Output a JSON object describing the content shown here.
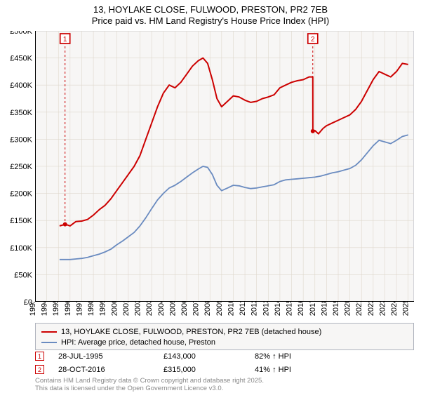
{
  "title_line1": "13, HOYLAKE CLOSE, FULWOOD, PRESTON, PR2 7EB",
  "title_line2": "Price paid vs. HM Land Registry's House Price Index (HPI)",
  "chart": {
    "type": "line",
    "background_color": "#f7f6f5",
    "border_color": "#b0b4be",
    "grid_color": "#ded7cc",
    "axis_color": "#000000",
    "minor_grid": true,
    "x_years": [
      1993,
      1994,
      1995,
      1996,
      1997,
      1998,
      1999,
      2000,
      2001,
      2002,
      2003,
      2004,
      2005,
      2006,
      2007,
      2008,
      2009,
      2010,
      2011,
      2012,
      2013,
      2014,
      2015,
      2016,
      2017,
      2018,
      2019,
      2020,
      2021,
      2022,
      2023,
      2024,
      2025
    ],
    "y_ticks": [
      0,
      50,
      100,
      150,
      200,
      250,
      300,
      350,
      400,
      450,
      500
    ],
    "y_tick_labels": [
      "£0",
      "£50K",
      "£100K",
      "£150K",
      "£200K",
      "£250K",
      "£300K",
      "£350K",
      "£400K",
      "£450K",
      "£500K"
    ],
    "ylim": [
      0,
      500
    ],
    "xlim": [
      1993,
      2025.5
    ],
    "label_fontsize": 11,
    "series": [
      {
        "name": "price_paid",
        "color": "#cc0000",
        "line_width": 2,
        "data": [
          [
            1995.1,
            140
          ],
          [
            1995.6,
            143
          ],
          [
            1996.0,
            140
          ],
          [
            1996.5,
            148
          ],
          [
            1997.0,
            149
          ],
          [
            1997.5,
            152
          ],
          [
            1998.0,
            160
          ],
          [
            1998.5,
            170
          ],
          [
            1999.0,
            178
          ],
          [
            1999.5,
            190
          ],
          [
            2000.0,
            205
          ],
          [
            2000.5,
            220
          ],
          [
            2001.0,
            235
          ],
          [
            2001.5,
            250
          ],
          [
            2002.0,
            270
          ],
          [
            2002.5,
            300
          ],
          [
            2003.0,
            330
          ],
          [
            2003.5,
            360
          ],
          [
            2004.0,
            385
          ],
          [
            2004.5,
            400
          ],
          [
            2005.0,
            395
          ],
          [
            2005.5,
            405
          ],
          [
            2006.0,
            420
          ],
          [
            2006.5,
            435
          ],
          [
            2007.0,
            445
          ],
          [
            2007.4,
            450
          ],
          [
            2007.8,
            440
          ],
          [
            2008.2,
            410
          ],
          [
            2008.6,
            375
          ],
          [
            2009.0,
            360
          ],
          [
            2009.5,
            370
          ],
          [
            2010.0,
            380
          ],
          [
            2010.5,
            378
          ],
          [
            2011.0,
            372
          ],
          [
            2011.5,
            368
          ],
          [
            2012.0,
            370
          ],
          [
            2012.5,
            375
          ],
          [
            2013.0,
            378
          ],
          [
            2013.5,
            382
          ],
          [
            2014.0,
            395
          ],
          [
            2014.5,
            400
          ],
          [
            2015.0,
            405
          ],
          [
            2015.5,
            408
          ],
          [
            2016.0,
            410
          ],
          [
            2016.5,
            415
          ],
          [
            2016.82,
            415
          ],
          [
            2016.83,
            315
          ],
          [
            2017.0,
            316
          ],
          [
            2017.3,
            310
          ],
          [
            2017.7,
            320
          ],
          [
            2018.0,
            325
          ],
          [
            2018.5,
            330
          ],
          [
            2019.0,
            335
          ],
          [
            2019.5,
            340
          ],
          [
            2020.0,
            345
          ],
          [
            2020.5,
            355
          ],
          [
            2021.0,
            370
          ],
          [
            2021.5,
            390
          ],
          [
            2022.0,
            410
          ],
          [
            2022.5,
            425
          ],
          [
            2023.0,
            420
          ],
          [
            2023.5,
            415
          ],
          [
            2024.0,
            425
          ],
          [
            2024.5,
            440
          ],
          [
            2025.0,
            438
          ]
        ]
      },
      {
        "name": "hpi",
        "color": "#6a8bc0",
        "line_width": 1.8,
        "data": [
          [
            1995.1,
            78
          ],
          [
            1995.6,
            78
          ],
          [
            1996.0,
            78
          ],
          [
            1996.5,
            79
          ],
          [
            1997.0,
            80
          ],
          [
            1997.5,
            82
          ],
          [
            1998.0,
            85
          ],
          [
            1998.5,
            88
          ],
          [
            1999.0,
            92
          ],
          [
            1999.5,
            97
          ],
          [
            2000.0,
            105
          ],
          [
            2000.5,
            112
          ],
          [
            2001.0,
            120
          ],
          [
            2001.5,
            128
          ],
          [
            2002.0,
            140
          ],
          [
            2002.5,
            155
          ],
          [
            2003.0,
            172
          ],
          [
            2003.5,
            188
          ],
          [
            2004.0,
            200
          ],
          [
            2004.5,
            210
          ],
          [
            2005.0,
            215
          ],
          [
            2005.5,
            222
          ],
          [
            2006.0,
            230
          ],
          [
            2006.5,
            238
          ],
          [
            2007.0,
            245
          ],
          [
            2007.4,
            250
          ],
          [
            2007.8,
            248
          ],
          [
            2008.2,
            235
          ],
          [
            2008.6,
            215
          ],
          [
            2009.0,
            205
          ],
          [
            2009.5,
            210
          ],
          [
            2010.0,
            215
          ],
          [
            2010.5,
            214
          ],
          [
            2011.0,
            211
          ],
          [
            2011.5,
            209
          ],
          [
            2012.0,
            210
          ],
          [
            2012.5,
            212
          ],
          [
            2013.0,
            214
          ],
          [
            2013.5,
            216
          ],
          [
            2014.0,
            222
          ],
          [
            2014.5,
            225
          ],
          [
            2015.0,
            226
          ],
          [
            2015.5,
            227
          ],
          [
            2016.0,
            228
          ],
          [
            2016.5,
            229
          ],
          [
            2017.0,
            230
          ],
          [
            2017.5,
            232
          ],
          [
            2018.0,
            235
          ],
          [
            2018.5,
            238
          ],
          [
            2019.0,
            240
          ],
          [
            2019.5,
            243
          ],
          [
            2020.0,
            246
          ],
          [
            2020.5,
            252
          ],
          [
            2021.0,
            262
          ],
          [
            2021.5,
            275
          ],
          [
            2022.0,
            288
          ],
          [
            2022.5,
            298
          ],
          [
            2023.0,
            295
          ],
          [
            2023.5,
            292
          ],
          [
            2024.0,
            298
          ],
          [
            2024.5,
            305
          ],
          [
            2025.0,
            308
          ]
        ]
      }
    ],
    "markers": [
      {
        "label": "1",
        "x": 1995.57,
        "y": 143,
        "border_color": "#cc0000",
        "text_color": "#cc0000",
        "line_color": "#cc0000",
        "dot_color": "#cc0000"
      },
      {
        "label": "2",
        "x": 2016.82,
        "y": 315,
        "border_color": "#cc0000",
        "text_color": "#cc0000",
        "line_color": "#cc0000",
        "dot_color": "#cc0000"
      }
    ]
  },
  "legend": {
    "items": [
      {
        "color": "#cc0000",
        "label": "13, HOYLAKE CLOSE, FULWOOD, PRESTON, PR2 7EB (detached house)"
      },
      {
        "color": "#6a8bc0",
        "label": "HPI: Average price, detached house, Preston"
      }
    ]
  },
  "annotations": [
    {
      "n": "1",
      "border_color": "#cc0000",
      "text_color": "#cc0000",
      "date": "28-JUL-1995",
      "price": "£143,000",
      "pct": "82% ↑ HPI"
    },
    {
      "n": "2",
      "border_color": "#cc0000",
      "text_color": "#cc0000",
      "date": "28-OCT-2016",
      "price": "£315,000",
      "pct": "41% ↑ HPI"
    }
  ],
  "footer_line1": "Contains HM Land Registry data © Crown copyright and database right 2025.",
  "footer_line2": "This data is licensed under the Open Government Licence v3.0."
}
